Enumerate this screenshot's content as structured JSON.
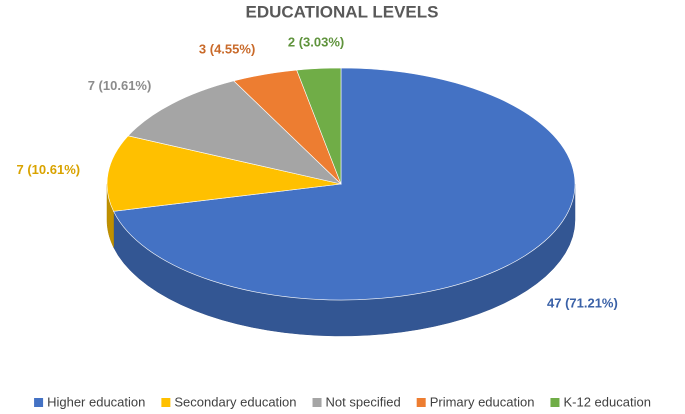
{
  "chart_data": {
    "type": "pie",
    "title": "EDUCATIONAL LEVELS",
    "categories": [
      "Higher education",
      "Secondary education",
      "Not specified",
      "Primary education",
      "K-12 education"
    ],
    "values": [
      47,
      7,
      7,
      3,
      2
    ],
    "value_labels": [
      "47 (71.21%)",
      "7 (10.61%)",
      "7 (10.61%)",
      "3 (4.55%)",
      "2 (3.03%)"
    ],
    "colors": [
      "#4472c4",
      "#ffc000",
      "#a5a5a5",
      "#ed7d31",
      "#70ad47"
    ],
    "legend": "bottom"
  }
}
